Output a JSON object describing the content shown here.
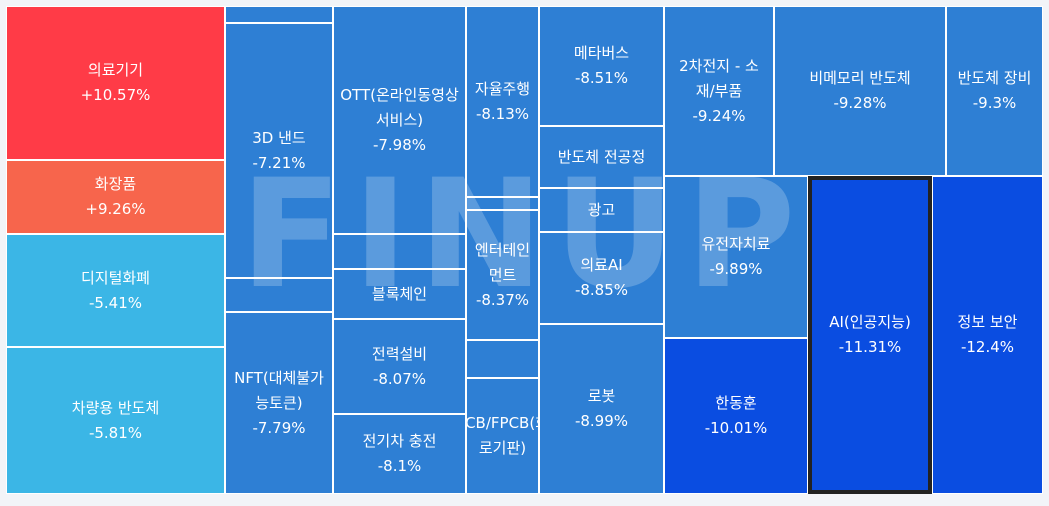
{
  "chart_data": {
    "type": "treemap",
    "watermark": "FINUP",
    "selected_sector": "AI(인공지능)",
    "colors": {
      "strong_up": "#ff3b47",
      "up": "#f7654c",
      "mild_down": "#3bb6e6",
      "down": "#2e7fd4",
      "strong_down": "#0a4de1"
    },
    "sectors": [
      {
        "name": "의료기기",
        "change": "+10.57%",
        "value": 10.57
      },
      {
        "name": "화장품",
        "change": "+9.26%",
        "value": 9.26
      },
      {
        "name": "디지털화폐",
        "change": "-5.41%",
        "value": -5.41
      },
      {
        "name": "차량용 반도체",
        "change": "-5.81%",
        "value": -5.81
      },
      {
        "name": "3D 낸드",
        "change": "-7.21%",
        "value": -7.21
      },
      {
        "name": "NFT(대체불가능토큰)",
        "change": "-7.79%",
        "value": -7.79
      },
      {
        "name": "OTT(온라인동영상서비스)",
        "change": "-7.98%",
        "value": -7.98
      },
      {
        "name": "블록체인",
        "change": "",
        "value": null
      },
      {
        "name": "전력설비",
        "change": "-8.07%",
        "value": -8.07
      },
      {
        "name": "전기차 충전",
        "change": "-8.1%",
        "value": -8.1
      },
      {
        "name": "자율주행",
        "change": "-8.13%",
        "value": -8.13
      },
      {
        "name": "엔터테인먼트",
        "change": "-8.37%",
        "value": -8.37
      },
      {
        "name": "PCB/FPCB(회로기판)",
        "change": "",
        "value": null
      },
      {
        "name": "메타버스",
        "change": "-8.51%",
        "value": -8.51
      },
      {
        "name": "반도체 전공정",
        "change": "",
        "value": null
      },
      {
        "name": "광고",
        "change": "",
        "value": null
      },
      {
        "name": "의료AI",
        "change": "-8.85%",
        "value": -8.85
      },
      {
        "name": "로봇",
        "change": "-8.99%",
        "value": -8.99
      },
      {
        "name": "2차전지 - 소재/부품",
        "change": "-9.24%",
        "value": -9.24
      },
      {
        "name": "유전자치료",
        "change": "-9.89%",
        "value": -9.89
      },
      {
        "name": "한동훈",
        "change": "-10.01%",
        "value": -10.01
      },
      {
        "name": "비메모리 반도체",
        "change": "-9.28%",
        "value": -9.28
      },
      {
        "name": "AI(인공지능)",
        "change": "-11.31%",
        "value": -11.31
      },
      {
        "name": "반도체 장비",
        "change": "-9.3%",
        "value": -9.3
      },
      {
        "name": "정보 보안",
        "change": "-12.4%",
        "value": -12.4
      }
    ]
  }
}
